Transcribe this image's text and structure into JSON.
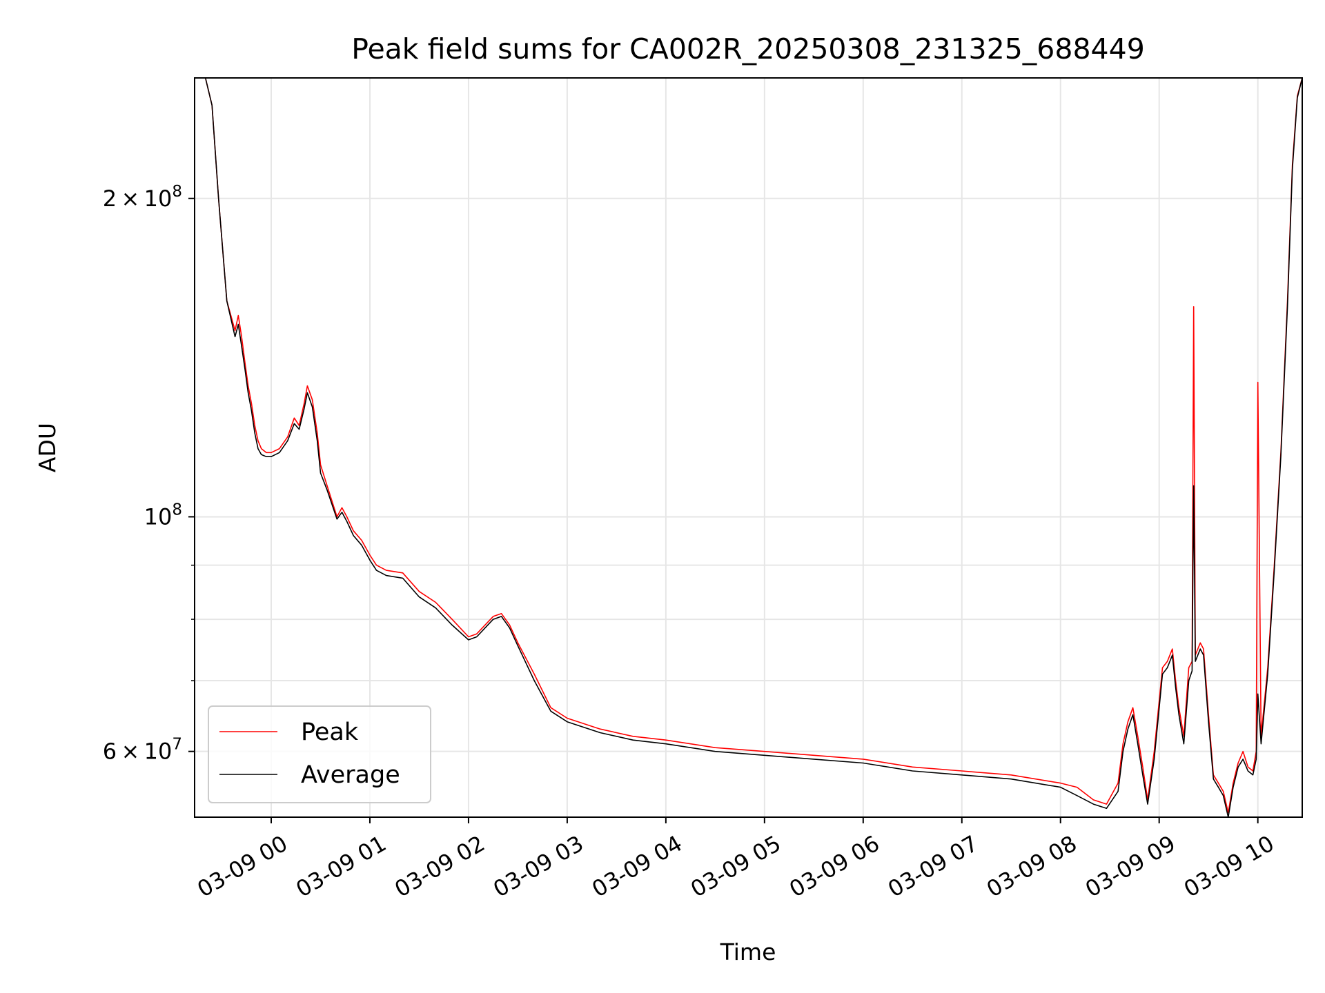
{
  "chart_data": {
    "type": "line",
    "title": "Peak field sums for CA002R_20250308_231325_688449",
    "xlabel": "Time",
    "ylabel": "ADU",
    "y_scale": "log",
    "ylim": [
      52000000,
      260000000
    ],
    "xlim": [
      "2025-03-08T23:13:25",
      "2025-03-09T10:27:00"
    ],
    "grid": true,
    "legend_position": "lower-left",
    "x_ticks": [
      {
        "value": "2025-03-09T00:00",
        "label": "03-09 00"
      },
      {
        "value": "2025-03-09T01:00",
        "label": "03-09 01"
      },
      {
        "value": "2025-03-09T02:00",
        "label": "03-09 02"
      },
      {
        "value": "2025-03-09T03:00",
        "label": "03-09 03"
      },
      {
        "value": "2025-03-09T04:00",
        "label": "03-09 04"
      },
      {
        "value": "2025-03-09T05:00",
        "label": "03-09 05"
      },
      {
        "value": "2025-03-09T06:00",
        "label": "03-09 06"
      },
      {
        "value": "2025-03-09T07:00",
        "label": "03-09 07"
      },
      {
        "value": "2025-03-09T08:00",
        "label": "03-09 08"
      },
      {
        "value": "2025-03-09T09:00",
        "label": "03-09 09"
      },
      {
        "value": "2025-03-09T10:00",
        "label": "03-09 10"
      }
    ],
    "y_major_ticks": [
      {
        "value": 200000000,
        "mantissa": "2",
        "times": "×",
        "base": "10",
        "exp": "8"
      },
      {
        "value": 100000000,
        "mantissa": "",
        "times": "",
        "base": "10",
        "exp": "8"
      },
      {
        "value": 60000000,
        "mantissa": "6",
        "times": "×",
        "base": "10",
        "exp": "7"
      }
    ],
    "y_minor_ticks": [
      70000000,
      80000000,
      90000000
    ],
    "series": [
      {
        "name": "Peak",
        "color": "#ff0000",
        "x": [
          "2025-03-08T23:13",
          "2025-03-08T23:20",
          "2025-03-08T23:24",
          "2025-03-08T23:28",
          "2025-03-08T23:33",
          "2025-03-08T23:38",
          "2025-03-08T23:40",
          "2025-03-08T23:42",
          "2025-03-08T23:44",
          "2025-03-08T23:46",
          "2025-03-08T23:48",
          "2025-03-08T23:50",
          "2025-03-08T23:52",
          "2025-03-08T23:54",
          "2025-03-08T23:57",
          "2025-03-09T00:00",
          "2025-03-09T00:05",
          "2025-03-09T00:10",
          "2025-03-09T00:14",
          "2025-03-09T00:17",
          "2025-03-09T00:20",
          "2025-03-09T00:22",
          "2025-03-09T00:25",
          "2025-03-09T00:28",
          "2025-03-09T00:30",
          "2025-03-09T00:34",
          "2025-03-09T00:40",
          "2025-03-09T00:43",
          "2025-03-09T00:46",
          "2025-03-09T00:50",
          "2025-03-09T00:55",
          "2025-03-09T01:00",
          "2025-03-09T01:04",
          "2025-03-09T01:10",
          "2025-03-09T01:20",
          "2025-03-09T01:30",
          "2025-03-09T01:40",
          "2025-03-09T01:50",
          "2025-03-09T02:00",
          "2025-03-09T02:05",
          "2025-03-09T02:10",
          "2025-03-09T02:15",
          "2025-03-09T02:20",
          "2025-03-09T02:25",
          "2025-03-09T02:30",
          "2025-03-09T02:40",
          "2025-03-09T02:50",
          "2025-03-09T03:00",
          "2025-03-09T03:20",
          "2025-03-09T03:40",
          "2025-03-09T04:00",
          "2025-03-09T04:30",
          "2025-03-09T05:00",
          "2025-03-09T05:30",
          "2025-03-09T06:00",
          "2025-03-09T06:30",
          "2025-03-09T07:00",
          "2025-03-09T07:30",
          "2025-03-09T08:00",
          "2025-03-09T08:10",
          "2025-03-09T08:20",
          "2025-03-09T08:28",
          "2025-03-09T08:35",
          "2025-03-09T08:38",
          "2025-03-09T08:41",
          "2025-03-09T08:44",
          "2025-03-09T08:47",
          "2025-03-09T08:50",
          "2025-03-09T08:53",
          "2025-03-09T08:57",
          "2025-03-09T09:02",
          "2025-03-09T09:05",
          "2025-03-09T09:08",
          "2025-03-09T09:10",
          "2025-03-09T09:12",
          "2025-03-09T09:15",
          "2025-03-09T09:18",
          "2025-03-09T09:20",
          "2025-03-09T09:21",
          "2025-03-09T09:22",
          "2025-03-09T09:25",
          "2025-03-09T09:27",
          "2025-03-09T09:30",
          "2025-03-09T09:33",
          "2025-03-09T09:36",
          "2025-03-09T09:39",
          "2025-03-09T09:42",
          "2025-03-09T09:45",
          "2025-03-09T09:48",
          "2025-03-09T09:51",
          "2025-03-09T09:54",
          "2025-03-09T09:57",
          "2025-03-09T09:59",
          "2025-03-09T10:00",
          "2025-03-09T10:02",
          "2025-03-09T10:06",
          "2025-03-09T10:10",
          "2025-03-09T10:14",
          "2025-03-09T10:18",
          "2025-03-09T10:21",
          "2025-03-09T10:24",
          "2025-03-09T10:27"
        ],
        "y": [
          260000000,
          260000000,
          245000000,
          200000000,
          160000000,
          150000000,
          155000000,
          148000000,
          140000000,
          133000000,
          128000000,
          122000000,
          118000000,
          116000000,
          115000000,
          115000000,
          116000000,
          119000000,
          124000000,
          122000000,
          128000000,
          133000000,
          129000000,
          120000000,
          112000000,
          107000000,
          100000000,
          102000000,
          100000000,
          97000000,
          95000000,
          92000000,
          90000000,
          89000000,
          88500000,
          85000000,
          83000000,
          80000000,
          77000000,
          77500000,
          79000000,
          80500000,
          81000000,
          79000000,
          76000000,
          71000000,
          66000000,
          64500000,
          63000000,
          62000000,
          61500000,
          60500000,
          60000000,
          59500000,
          59000000,
          58000000,
          57500000,
          57000000,
          56000000,
          55500000,
          54000000,
          53500000,
          56000000,
          61000000,
          64000000,
          66000000,
          62000000,
          58000000,
          54000000,
          60000000,
          72000000,
          73000000,
          75000000,
          70000000,
          66000000,
          62000000,
          72000000,
          73000000,
          158000000,
          74000000,
          76000000,
          75000000,
          65000000,
          57000000,
          56000000,
          55000000,
          52500000,
          56000000,
          58500000,
          60000000,
          58000000,
          57500000,
          60000000,
          134000000,
          62000000,
          72000000,
          90000000,
          115000000,
          160000000,
          215000000,
          250000000,
          260000000
        ]
      },
      {
        "name": "Average",
        "color": "#000000",
        "x": [
          "2025-03-08T23:13",
          "2025-03-08T23:20",
          "2025-03-08T23:24",
          "2025-03-08T23:28",
          "2025-03-08T23:33",
          "2025-03-08T23:38",
          "2025-03-08T23:40",
          "2025-03-08T23:42",
          "2025-03-08T23:44",
          "2025-03-08T23:46",
          "2025-03-08T23:48",
          "2025-03-08T23:50",
          "2025-03-08T23:52",
          "2025-03-08T23:54",
          "2025-03-08T23:57",
          "2025-03-09T00:00",
          "2025-03-09T00:05",
          "2025-03-09T00:10",
          "2025-03-09T00:14",
          "2025-03-09T00:17",
          "2025-03-09T00:20",
          "2025-03-09T00:22",
          "2025-03-09T00:25",
          "2025-03-09T00:28",
          "2025-03-09T00:30",
          "2025-03-09T00:34",
          "2025-03-09T00:40",
          "2025-03-09T00:43",
          "2025-03-09T00:46",
          "2025-03-09T00:50",
          "2025-03-09T00:55",
          "2025-03-09T01:00",
          "2025-03-09T01:04",
          "2025-03-09T01:10",
          "2025-03-09T01:20",
          "2025-03-09T01:30",
          "2025-03-09T01:40",
          "2025-03-09T01:50",
          "2025-03-09T02:00",
          "2025-03-09T02:05",
          "2025-03-09T02:10",
          "2025-03-09T02:15",
          "2025-03-09T02:20",
          "2025-03-09T02:25",
          "2025-03-09T02:30",
          "2025-03-09T02:40",
          "2025-03-09T02:50",
          "2025-03-09T03:00",
          "2025-03-09T03:20",
          "2025-03-09T03:40",
          "2025-03-09T04:00",
          "2025-03-09T04:30",
          "2025-03-09T05:00",
          "2025-03-09T05:30",
          "2025-03-09T06:00",
          "2025-03-09T06:30",
          "2025-03-09T07:00",
          "2025-03-09T07:30",
          "2025-03-09T08:00",
          "2025-03-09T08:10",
          "2025-03-09T08:20",
          "2025-03-09T08:28",
          "2025-03-09T08:35",
          "2025-03-09T08:38",
          "2025-03-09T08:41",
          "2025-03-09T08:44",
          "2025-03-09T08:47",
          "2025-03-09T08:50",
          "2025-03-09T08:53",
          "2025-03-09T08:57",
          "2025-03-09T09:02",
          "2025-03-09T09:05",
          "2025-03-09T09:08",
          "2025-03-09T09:10",
          "2025-03-09T09:12",
          "2025-03-09T09:15",
          "2025-03-09T09:18",
          "2025-03-09T09:20",
          "2025-03-09T09:21",
          "2025-03-09T09:22",
          "2025-03-09T09:25",
          "2025-03-09T09:27",
          "2025-03-09T09:30",
          "2025-03-09T09:33",
          "2025-03-09T09:36",
          "2025-03-09T09:39",
          "2025-03-09T09:42",
          "2025-03-09T09:45",
          "2025-03-09T09:48",
          "2025-03-09T09:51",
          "2025-03-09T09:54",
          "2025-03-09T09:57",
          "2025-03-09T09:59",
          "2025-03-09T10:00",
          "2025-03-09T10:02",
          "2025-03-09T10:06",
          "2025-03-09T10:10",
          "2025-03-09T10:14",
          "2025-03-09T10:18",
          "2025-03-09T10:21",
          "2025-03-09T10:24",
          "2025-03-09T10:27"
        ],
        "y": [
          260000000,
          260000000,
          245000000,
          200000000,
          160000000,
          148000000,
          152000000,
          145000000,
          138000000,
          131000000,
          126000000,
          120000000,
          116000000,
          114500000,
          114000000,
          114000000,
          115000000,
          118000000,
          122500000,
          121000000,
          126500000,
          131000000,
          127000000,
          118000000,
          110000000,
          106000000,
          99500000,
          101000000,
          99000000,
          96000000,
          94000000,
          91000000,
          89000000,
          88000000,
          87500000,
          84000000,
          82000000,
          79000000,
          76500000,
          77000000,
          78500000,
          80000000,
          80500000,
          78500000,
          75500000,
          70000000,
          65500000,
          64000000,
          62500000,
          61500000,
          61000000,
          60000000,
          59500000,
          59000000,
          58500000,
          57500000,
          57000000,
          56500000,
          55500000,
          54500000,
          53500000,
          53000000,
          55000000,
          60000000,
          63000000,
          65000000,
          61000000,
          57000000,
          53500000,
          59000000,
          71000000,
          72000000,
          74000000,
          69000000,
          65000000,
          61000000,
          70000000,
          71500000,
          107000000,
          73000000,
          75000000,
          74000000,
          64000000,
          56500000,
          55500000,
          54500000,
          52000000,
          55500000,
          58000000,
          59000000,
          57500000,
          57000000,
          59000000,
          68000000,
          61000000,
          71000000,
          89000000,
          114000000,
          158000000,
          213000000,
          249000000,
          260000000
        ]
      }
    ]
  }
}
